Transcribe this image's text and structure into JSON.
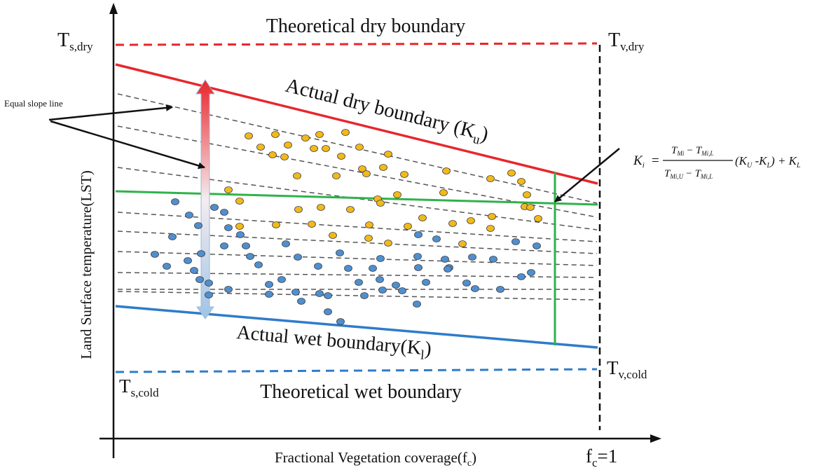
{
  "labels": {
    "theoretical_dry": "Theoretical dry boundary",
    "theoretical_wet": "Theoretical wet boundary",
    "actual_dry": "Actual dry boundary (K",
    "actual_dry_sub": "u",
    "actual_dry_close": ")",
    "actual_wet": "Actual wet boundary(K",
    "actual_wet_sub": "l",
    "actual_wet_close": ")",
    "equal_slope": "Equal slope line",
    "y_axis": "Land Surface temperature(LST)",
    "x_axis": "Fractional Vegetation coverage(f",
    "x_axis_sub": "c",
    "x_axis_close": ")",
    "fc_main": "f",
    "fc_sub": "c",
    "fc_tail": "=1",
    "ts_dry_main": "T",
    "ts_dry_sub": "s,dry",
    "tv_dry_main": "T",
    "tv_dry_sub": "v,dry",
    "ts_cold_main": "T",
    "ts_cold_sub": "s,cold",
    "tv_cold_main": "T",
    "tv_cold_sub": "v,cold"
  },
  "formula": {
    "lhs": "K",
    "lhs_sub": "i",
    "eq": "=",
    "num_a": "T",
    "num_a_sub": "Mi",
    "minus": "−",
    "num_b": "T",
    "num_b_sub": "Mi,L",
    "den_a": "T",
    "den_a_sub": "Mi,U",
    "den_b": "T",
    "den_b_sub": "Mi,L",
    "factor": "(K",
    "factor_sub1": "U",
    "factor_mid": " -K",
    "factor_sub2": "L",
    "factor_end": ") + K",
    "tail_sub": "L"
  },
  "colors": {
    "dry_line": "#e8262b",
    "wet_line": "#2f7cc9",
    "green_line": "#2fb24a",
    "yellow_point": "#f2b91b",
    "blue_point": "#4f8fd0",
    "dash": "#555555"
  }
}
